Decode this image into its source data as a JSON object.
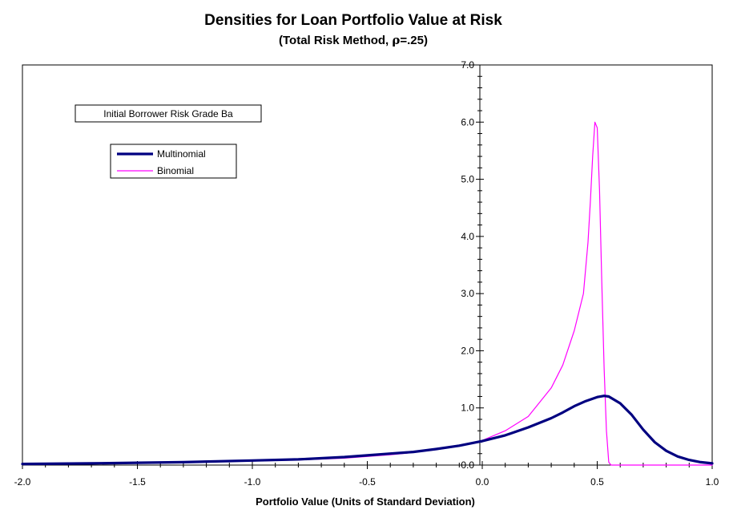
{
  "chart_data": {
    "type": "line",
    "title": "Densities for Loan Portfolio Value at Risk",
    "subtitle_prefix": "(Total Risk Method, ",
    "subtitle_rho": "ρ",
    "subtitle_suffix": "=.25)",
    "xlabel": "Portfolio Value (Units of Standard Deviation)",
    "ylabel": "",
    "xlim": [
      -2.0,
      1.0
    ],
    "ylim": [
      0.0,
      7.0
    ],
    "x_ticks": [
      "-2.0",
      "-1.5",
      "-1.0",
      "-0.5",
      "0.0",
      "0.5",
      "1.0"
    ],
    "y_ticks": [
      "0.0",
      "1.0",
      "2.0",
      "3.0",
      "4.0",
      "5.0",
      "6.0",
      "7.0"
    ],
    "annotation": "Initial Borrower Risk Grade Ba",
    "legend_placement": "upper-left",
    "grid": false,
    "series": [
      {
        "name": "Multinomial",
        "color": "#000080",
        "x": [
          -2.0,
          -1.7,
          -1.5,
          -1.3,
          -1.0,
          -0.8,
          -0.6,
          -0.5,
          -0.4,
          -0.3,
          -0.2,
          -0.1,
          0.0,
          0.1,
          0.2,
          0.3,
          0.35,
          0.4,
          0.45,
          0.5,
          0.53,
          0.55,
          0.6,
          0.65,
          0.7,
          0.75,
          0.8,
          0.85,
          0.9,
          0.95,
          1.0
        ],
        "y": [
          0.02,
          0.03,
          0.04,
          0.05,
          0.08,
          0.1,
          0.14,
          0.17,
          0.2,
          0.23,
          0.28,
          0.34,
          0.42,
          0.52,
          0.66,
          0.82,
          0.92,
          1.03,
          1.12,
          1.19,
          1.21,
          1.2,
          1.08,
          0.88,
          0.62,
          0.4,
          0.25,
          0.15,
          0.09,
          0.05,
          0.03
        ]
      },
      {
        "name": "Binomial",
        "color": "#ff00ff",
        "x": [
          -2.0,
          -1.7,
          -1.5,
          -1.3,
          -1.0,
          -0.8,
          -0.6,
          -0.5,
          -0.4,
          -0.3,
          -0.2,
          -0.1,
          0.0,
          0.1,
          0.2,
          0.3,
          0.35,
          0.4,
          0.44,
          0.46,
          0.47,
          0.48,
          0.49,
          0.5,
          0.51,
          0.52,
          0.53,
          0.54,
          0.55,
          0.56,
          0.6,
          0.8,
          1.0
        ],
        "y": [
          0.02,
          0.03,
          0.04,
          0.05,
          0.07,
          0.09,
          0.12,
          0.15,
          0.18,
          0.22,
          0.27,
          0.33,
          0.43,
          0.6,
          0.85,
          1.35,
          1.75,
          2.35,
          3.0,
          3.9,
          4.6,
          5.4,
          6.0,
          5.9,
          4.8,
          3.2,
          1.7,
          0.6,
          0.05,
          0.0,
          0.0,
          0.0,
          0.0
        ]
      }
    ]
  }
}
